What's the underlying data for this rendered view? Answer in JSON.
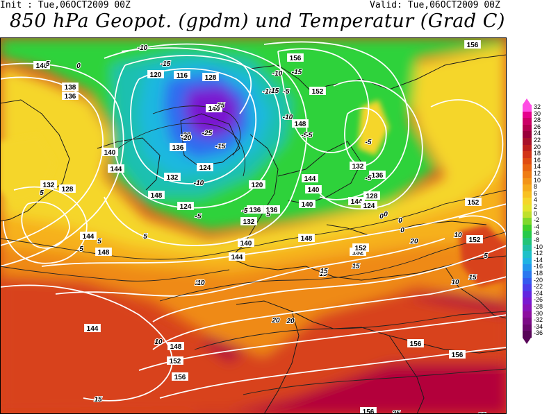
{
  "header": {
    "init_text": "Init : Tue,06OCT2009 00Z",
    "valid_text": "Valid: Tue,06OCT2009 00Z",
    "title": "850 hPa Geopot. (gpdm) und Temperatur (Grad C)"
  },
  "legend": {
    "levels": [
      {
        "label": "32",
        "color": "#ff4de3"
      },
      {
        "label": "30",
        "color": "#e6008c"
      },
      {
        "label": "28",
        "color": "#cc0066"
      },
      {
        "label": "26",
        "color": "#b3004d"
      },
      {
        "label": "24",
        "color": "#99003a"
      },
      {
        "label": "22",
        "color": "#a8112a"
      },
      {
        "label": "20",
        "color": "#be1f1c"
      },
      {
        "label": "18",
        "color": "#d23418"
      },
      {
        "label": "16",
        "color": "#df4c12"
      },
      {
        "label": "14",
        "color": "#e86411"
      },
      {
        "label": "12",
        "color": "#ef7c14"
      },
      {
        "label": "10",
        "color": "#f39418"
      },
      {
        "label": "8",
        "color": "#f6ab1c"
      },
      {
        "label": "6",
        "color": "#f8c122"
      },
      {
        "label": "4",
        "color": "#f5d62a"
      },
      {
        "label": "2",
        "color": "#e4e42c"
      },
      {
        "label": "0",
        "color": "#bfe02c"
      },
      {
        "label": "-2",
        "color": "#7fd82b"
      },
      {
        "label": "-4",
        "color": "#3ecf2a"
      },
      {
        "label": "-6",
        "color": "#26c94a"
      },
      {
        "label": "-8",
        "color": "#22c478"
      },
      {
        "label": "-10",
        "color": "#1fbfa3"
      },
      {
        "label": "-12",
        "color": "#1ec0c8"
      },
      {
        "label": "-14",
        "color": "#1fb3e3"
      },
      {
        "label": "-16",
        "color": "#2396ec"
      },
      {
        "label": "-18",
        "color": "#2b78ef"
      },
      {
        "label": "-20",
        "color": "#345aef"
      },
      {
        "label": "-22",
        "color": "#4a3eea"
      },
      {
        "label": "-24",
        "color": "#6226e0"
      },
      {
        "label": "-26",
        "color": "#7a18d0"
      },
      {
        "label": "-28",
        "color": "#8812b8"
      },
      {
        "label": "-30",
        "color": "#8c0f9f"
      },
      {
        "label": "-32",
        "color": "#7c0b86"
      },
      {
        "label": "-34",
        "color": "#6a086e"
      },
      {
        "label": "-36",
        "color": "#580558"
      }
    ]
  },
  "map": {
    "colors": {
      "hot": "#b3003a",
      "warm_red": "#d8421a",
      "orange": "#ef8a16",
      "yellow_orange": "#f6b11c",
      "yellow": "#f5d62a",
      "green": "#2fd23a",
      "teal": "#1fc0b0",
      "cyan": "#1fb8e0",
      "blue": "#2f6cf0",
      "purple": "#7a18d0",
      "contour": "#ffffff",
      "coast": "#1a1a1a"
    },
    "geopotential_labels": [
      "140",
      "136",
      "132",
      "128",
      "124",
      "120",
      "116",
      "144",
      "148",
      "152",
      "156",
      "140",
      "136",
      "132",
      "128",
      "124",
      "120",
      "144",
      "148",
      "152",
      "156",
      "140",
      "144",
      "148",
      "152",
      "136",
      "140",
      "144",
      "152",
      "156",
      "124",
      "128",
      "132",
      "136",
      "140",
      "144",
      "148",
      "152",
      "156",
      "132",
      "136",
      "138",
      "140",
      "144",
      "148",
      "152",
      "156",
      "156"
    ],
    "temperature_labels": [
      "-5",
      "0",
      "-10",
      "-15",
      "-20",
      "-25",
      "-5",
      "-10",
      "-15",
      "-20",
      "-25",
      "-5",
      "-10",
      "-15",
      "-5",
      "-10",
      "-5",
      "0",
      "5",
      "10",
      "15",
      "20",
      "5",
      "10",
      "15",
      "20",
      "5",
      "10",
      "15",
      "5",
      "10",
      "15",
      "20",
      "25",
      "-5",
      "0",
      "-10",
      "-15",
      "-5",
      "-5",
      "0",
      "5",
      "10",
      "15",
      "20",
      "25",
      "0",
      "5"
    ]
  }
}
